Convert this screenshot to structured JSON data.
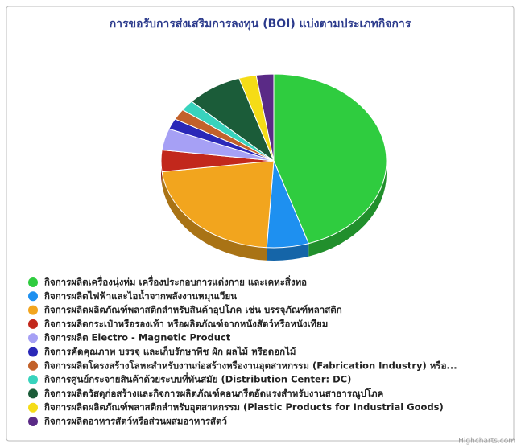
{
  "chart_data": {
    "type": "pie3d",
    "title": "การขอรับการส่งเสริมการลงทุน (BOI) แบ่งตามประเภทกิจการ",
    "credits": "Highcharts.com",
    "categories": [
      "กิจการผลิตเครื่องนุ่งห่ม เครื่องประกอบการแต่งกาย และเคหะสิ่งทอ",
      "กิจการผลิตไฟฟ้าและไอน้ำจากพลังงานหมุนเวียน",
      "กิจการผลิตผลิตภัณฑ์พลาสติกสำหรับสินค้าอุปโภค เช่น บรรจุภัณฑ์พลาสติก",
      "กิจการผลิตกระเป๋าหรือรองเท้า หรือผลิตภัณฑ์จากหนังสัตว์หรือหนังเทียม",
      "กิจการผลิต Electro - Magnetic Product",
      "กิจการคัดคุณภาพ บรรจุ และเก็บรักษาพืช ผัก ผลไม้ หรือดอกไม้",
      "กิจการผลิตโครงสร้างโลหะสำหรับงานก่อสร้างหรืองานอุตสาหกรรม (Fabrication Industry) หรือ...",
      "กิจการศูนย์กระจายสินค้าด้วยระบบที่ทันสมัย (Distribution Center: DC)",
      "กิจการผลิตวัสดุก่อสร้างและกิจการผลิตภัณฑ์คอนกรีตอัดแรงสำหรับงานสาธารณูปโภค",
      "กิจการผลิตผลิตภัณฑ์พลาสติกสำหรับอุตสาหกรรม (Plastic Products for Industrial Goods)",
      "กิจการผลิตอาหารสัตว์หรือส่วนผสมอาหารสัตว์"
    ],
    "values": [
      45,
      6,
      22,
      4,
      4,
      2,
      2,
      2,
      8,
      2.5,
      2.5
    ],
    "colors": [
      "#2fcc3f",
      "#1e90f0",
      "#f2a51e",
      "#c2281c",
      "#a6a0f5",
      "#2a28b8",
      "#c2612a",
      "#38d3bd",
      "#1b5c39",
      "#f5dc17",
      "#5a2a86"
    ]
  }
}
